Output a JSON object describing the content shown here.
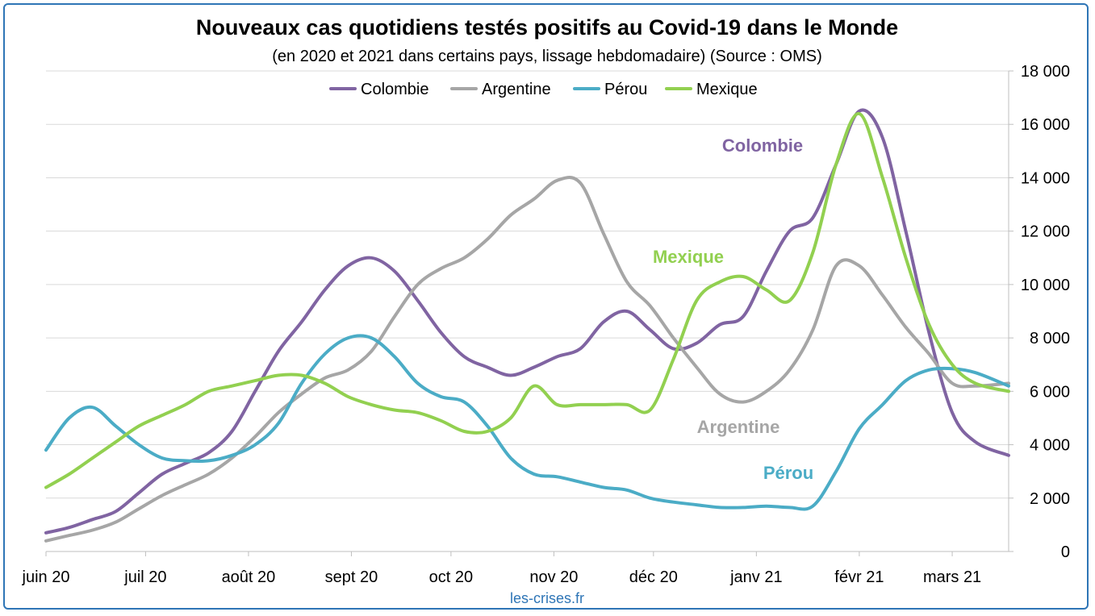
{
  "chart_data": {
    "type": "line",
    "title": "Nouveaux cas quotidiens testés positifs au Covid-19 dans le Monde",
    "subtitle": "(en 2020 et 2021 dans certains pays, lissage hebdomadaire) (Source : OMS)",
    "source_label": "les-crises.fr",
    "x_tick_labels": [
      "juin 20",
      "juil 20",
      "août 20",
      "sept 20",
      "oct 20",
      "nov 20",
      "déc 20",
      "janv 21",
      "févr 21",
      "mars 21"
    ],
    "x_ticks": [
      "2020-06-01",
      "2020-07-01",
      "2020-08-01",
      "2020-09-01",
      "2020-10-01",
      "2020-11-01",
      "2020-12-01",
      "2021-01-01",
      "2021-02-01",
      "2021-03-01"
    ],
    "xlim": [
      "2020-06-01",
      "2021-03-18"
    ],
    "y_axis_position": "right",
    "ylim": [
      0,
      18000
    ],
    "y_tick_labels": [
      "0",
      "2 000",
      "4 000",
      "6 000",
      "8 000",
      "10 000",
      "12 000",
      "14 000",
      "16 000",
      "18 000"
    ],
    "y_ticks": [
      0,
      2000,
      4000,
      6000,
      8000,
      10000,
      12000,
      14000,
      16000,
      18000
    ],
    "grid": true,
    "legend_position": "top",
    "series": [
      {
        "name": "Colombie",
        "color": "#8064a2",
        "annotation": "Colombie",
        "points": [
          [
            "2020-06-01",
            700
          ],
          [
            "2020-06-08",
            900
          ],
          [
            "2020-06-15",
            1200
          ],
          [
            "2020-06-22",
            1500
          ],
          [
            "2020-06-29",
            2200
          ],
          [
            "2020-07-06",
            2900
          ],
          [
            "2020-07-13",
            3300
          ],
          [
            "2020-07-20",
            3700
          ],
          [
            "2020-07-27",
            4500
          ],
          [
            "2020-08-03",
            6000
          ],
          [
            "2020-08-10",
            7500
          ],
          [
            "2020-08-17",
            8600
          ],
          [
            "2020-08-24",
            9800
          ],
          [
            "2020-08-31",
            10700
          ],
          [
            "2020-09-07",
            11000
          ],
          [
            "2020-09-14",
            10500
          ],
          [
            "2020-09-21",
            9400
          ],
          [
            "2020-09-28",
            8200
          ],
          [
            "2020-10-05",
            7300
          ],
          [
            "2020-10-12",
            6900
          ],
          [
            "2020-10-19",
            6600
          ],
          [
            "2020-10-26",
            6900
          ],
          [
            "2020-11-02",
            7300
          ],
          [
            "2020-11-09",
            7600
          ],
          [
            "2020-11-16",
            8600
          ],
          [
            "2020-11-23",
            9000
          ],
          [
            "2020-11-30",
            8300
          ],
          [
            "2020-12-07",
            7600
          ],
          [
            "2020-12-14",
            7800
          ],
          [
            "2020-12-21",
            8500
          ],
          [
            "2020-12-28",
            8800
          ],
          [
            "2021-01-04",
            10500
          ],
          [
            "2021-01-11",
            12000
          ],
          [
            "2021-01-18",
            12500
          ],
          [
            "2021-01-25",
            14500
          ],
          [
            "2021-02-01",
            16500
          ],
          [
            "2021-02-08",
            15500
          ],
          [
            "2021-02-15",
            12000
          ],
          [
            "2021-02-22",
            8200
          ],
          [
            "2021-03-01",
            5200
          ],
          [
            "2021-03-08",
            4100
          ],
          [
            "2021-03-18",
            3600
          ]
        ]
      },
      {
        "name": "Argentine",
        "color": "#a6a6a6",
        "annotation": "Argentine",
        "points": [
          [
            "2020-06-01",
            400
          ],
          [
            "2020-06-08",
            600
          ],
          [
            "2020-06-15",
            800
          ],
          [
            "2020-06-22",
            1100
          ],
          [
            "2020-06-29",
            1600
          ],
          [
            "2020-07-06",
            2100
          ],
          [
            "2020-07-13",
            2500
          ],
          [
            "2020-07-20",
            2900
          ],
          [
            "2020-07-27",
            3500
          ],
          [
            "2020-08-03",
            4300
          ],
          [
            "2020-08-10",
            5200
          ],
          [
            "2020-08-17",
            5900
          ],
          [
            "2020-08-24",
            6500
          ],
          [
            "2020-08-31",
            6800
          ],
          [
            "2020-09-07",
            7500
          ],
          [
            "2020-09-14",
            8800
          ],
          [
            "2020-09-21",
            10000
          ],
          [
            "2020-09-28",
            10600
          ],
          [
            "2020-10-05",
            11000
          ],
          [
            "2020-10-12",
            11700
          ],
          [
            "2020-10-19",
            12600
          ],
          [
            "2020-10-26",
            13200
          ],
          [
            "2020-11-02",
            13900
          ],
          [
            "2020-11-09",
            13800
          ],
          [
            "2020-11-16",
            11900
          ],
          [
            "2020-11-23",
            10100
          ],
          [
            "2020-11-30",
            9200
          ],
          [
            "2020-12-07",
            8000
          ],
          [
            "2020-12-14",
            6900
          ],
          [
            "2020-12-21",
            5900
          ],
          [
            "2020-12-28",
            5600
          ],
          [
            "2021-01-04",
            6000
          ],
          [
            "2021-01-11",
            6800
          ],
          [
            "2021-01-18",
            8300
          ],
          [
            "2021-01-25",
            10700
          ],
          [
            "2021-02-01",
            10700
          ],
          [
            "2021-02-08",
            9600
          ],
          [
            "2021-02-15",
            8400
          ],
          [
            "2021-02-22",
            7400
          ],
          [
            "2021-03-01",
            6300
          ],
          [
            "2021-03-08",
            6200
          ],
          [
            "2021-03-18",
            6300
          ]
        ]
      },
      {
        "name": "Pérou",
        "color": "#4bacc6",
        "annotation": "Pérou",
        "points": [
          [
            "2020-06-01",
            3800
          ],
          [
            "2020-06-08",
            5000
          ],
          [
            "2020-06-15",
            5400
          ],
          [
            "2020-06-22",
            4700
          ],
          [
            "2020-06-29",
            4000
          ],
          [
            "2020-07-06",
            3500
          ],
          [
            "2020-07-13",
            3400
          ],
          [
            "2020-07-20",
            3400
          ],
          [
            "2020-07-27",
            3600
          ],
          [
            "2020-08-03",
            4000
          ],
          [
            "2020-08-10",
            4800
          ],
          [
            "2020-08-17",
            6300
          ],
          [
            "2020-08-24",
            7400
          ],
          [
            "2020-08-31",
            8000
          ],
          [
            "2020-09-07",
            8000
          ],
          [
            "2020-09-14",
            7300
          ],
          [
            "2020-09-21",
            6300
          ],
          [
            "2020-09-28",
            5800
          ],
          [
            "2020-10-05",
            5600
          ],
          [
            "2020-10-12",
            4700
          ],
          [
            "2020-10-19",
            3500
          ],
          [
            "2020-10-26",
            2900
          ],
          [
            "2020-11-02",
            2800
          ],
          [
            "2020-11-09",
            2600
          ],
          [
            "2020-11-16",
            2400
          ],
          [
            "2020-11-23",
            2300
          ],
          [
            "2020-11-30",
            2000
          ],
          [
            "2020-12-07",
            1850
          ],
          [
            "2020-12-14",
            1750
          ],
          [
            "2020-12-21",
            1650
          ],
          [
            "2020-12-28",
            1650
          ],
          [
            "2021-01-04",
            1700
          ],
          [
            "2021-01-11",
            1650
          ],
          [
            "2021-01-18",
            1700
          ],
          [
            "2021-01-25",
            3000
          ],
          [
            "2021-02-01",
            4600
          ],
          [
            "2021-02-08",
            5500
          ],
          [
            "2021-02-15",
            6400
          ],
          [
            "2021-02-22",
            6800
          ],
          [
            "2021-03-01",
            6850
          ],
          [
            "2021-03-08",
            6700
          ],
          [
            "2021-03-18",
            6200
          ]
        ]
      },
      {
        "name": "Mexique",
        "color": "#92d050",
        "annotation": "Mexique",
        "points": [
          [
            "2020-06-01",
            2400
          ],
          [
            "2020-06-08",
            2900
          ],
          [
            "2020-06-15",
            3500
          ],
          [
            "2020-06-22",
            4100
          ],
          [
            "2020-06-29",
            4700
          ],
          [
            "2020-07-06",
            5100
          ],
          [
            "2020-07-13",
            5500
          ],
          [
            "2020-07-20",
            6000
          ],
          [
            "2020-07-27",
            6200
          ],
          [
            "2020-08-03",
            6400
          ],
          [
            "2020-08-10",
            6600
          ],
          [
            "2020-08-17",
            6600
          ],
          [
            "2020-08-24",
            6300
          ],
          [
            "2020-08-31",
            5800
          ],
          [
            "2020-09-07",
            5500
          ],
          [
            "2020-09-14",
            5300
          ],
          [
            "2020-09-21",
            5200
          ],
          [
            "2020-09-28",
            4900
          ],
          [
            "2020-10-05",
            4500
          ],
          [
            "2020-10-12",
            4500
          ],
          [
            "2020-10-19",
            5000
          ],
          [
            "2020-10-26",
            6200
          ],
          [
            "2020-11-02",
            5500
          ],
          [
            "2020-11-09",
            5500
          ],
          [
            "2020-11-16",
            5500
          ],
          [
            "2020-11-23",
            5500
          ],
          [
            "2020-11-30",
            5300
          ],
          [
            "2020-12-07",
            7200
          ],
          [
            "2020-12-14",
            9400
          ],
          [
            "2020-12-21",
            10100
          ],
          [
            "2020-12-28",
            10300
          ],
          [
            "2021-01-04",
            9800
          ],
          [
            "2021-01-11",
            9400
          ],
          [
            "2021-01-18",
            11200
          ],
          [
            "2021-01-25",
            14500
          ],
          [
            "2021-02-01",
            16400
          ],
          [
            "2021-02-08",
            14000
          ],
          [
            "2021-02-15",
            11000
          ],
          [
            "2021-02-22",
            8500
          ],
          [
            "2021-03-01",
            7000
          ],
          [
            "2021-03-08",
            6300
          ],
          [
            "2021-03-18",
            6000
          ]
        ]
      }
    ]
  }
}
